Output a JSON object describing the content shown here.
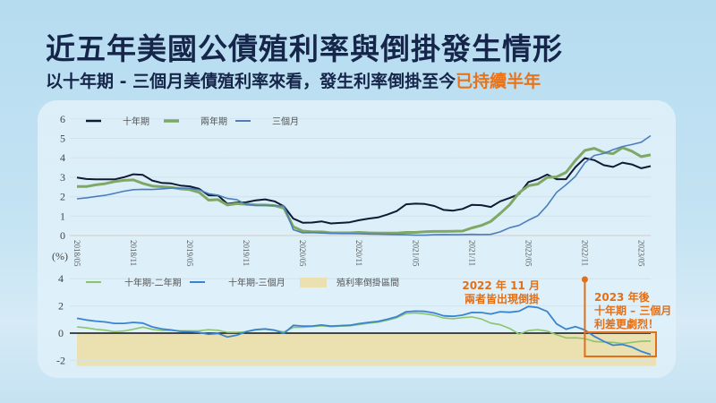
{
  "header": {
    "title": "近五年美國公債殖利率與倒掛發生情形",
    "subtitle_main": "以十年期 - 三個月美債殖利率來看，發生利率倒掛至今",
    "subtitle_highlight": "已持續半年"
  },
  "colors": {
    "ten_year": "#0f1a33",
    "two_year": "#7fa866",
    "three_month": "#4a7fbd",
    "spread_10y2y": "#8cc46e",
    "spread_10y3m": "#3a84cf",
    "inversion_fill": "#ebe0b0",
    "annotation": "#e0701a",
    "title": "#16264a"
  },
  "annotations": {
    "nov2022_line1": "2022 年 11 月",
    "nov2022_line2": "兩者皆出現倒掛",
    "y2023_line1": "2023 年後",
    "y2023_line2": "十年期 – 三個月",
    "y2023_line3": "利差更劇烈！"
  },
  "chart_data": [
    {
      "type": "line",
      "title": "",
      "xlabel": "",
      "ylabel": "",
      "ylim": [
        0,
        6
      ],
      "yticks": [
        0,
        1,
        2,
        3,
        4,
        5,
        6
      ],
      "grid": true,
      "legend_position": "top-left",
      "x_tick_labels": [
        "2018/05",
        "2018/11",
        "2019/05",
        "2019/11",
        "2020/05",
        "2020/11",
        "2021/05",
        "2021/11",
        "2022/05",
        "2022/11",
        "2023/05"
      ],
      "x_start": "2018/05",
      "x_freq": "monthly",
      "series": [
        {
          "name": "十年期",
          "values": [
            2.98,
            2.91,
            2.89,
            2.89,
            2.89,
            3.0,
            3.15,
            3.12,
            2.83,
            2.71,
            2.68,
            2.57,
            2.53,
            2.4,
            2.07,
            2.06,
            1.63,
            1.7,
            1.71,
            1.81,
            1.86,
            1.76,
            1.5,
            0.87,
            0.66,
            0.67,
            0.73,
            0.62,
            0.65,
            0.68,
            0.79,
            0.87,
            0.93,
            1.08,
            1.26,
            1.61,
            1.64,
            1.62,
            1.52,
            1.32,
            1.28,
            1.37,
            1.58,
            1.56,
            1.47,
            1.76,
            1.93,
            2.13,
            2.75,
            2.9,
            3.14,
            2.9,
            2.9,
            3.52,
            3.98,
            3.88,
            3.62,
            3.53,
            3.75,
            3.66,
            3.46,
            3.57
          ]
        },
        {
          "name": "兩年期",
          "values": [
            2.52,
            2.52,
            2.61,
            2.67,
            2.78,
            2.84,
            2.86,
            2.68,
            2.55,
            2.51,
            2.48,
            2.4,
            2.36,
            2.22,
            1.82,
            1.85,
            1.57,
            1.64,
            1.61,
            1.58,
            1.57,
            1.54,
            1.41,
            0.45,
            0.23,
            0.19,
            0.19,
            0.14,
            0.14,
            0.14,
            0.16,
            0.14,
            0.13,
            0.13,
            0.13,
            0.16,
            0.16,
            0.2,
            0.21,
            0.21,
            0.22,
            0.23,
            0.39,
            0.52,
            0.73,
            1.14,
            1.58,
            2.2,
            2.56,
            2.65,
            2.99,
            3.02,
            3.25,
            3.86,
            4.38,
            4.49,
            4.28,
            4.21,
            4.52,
            4.34,
            4.06,
            4.15
          ]
        },
        {
          "name": "三個月",
          "values": [
            1.89,
            1.94,
            2.01,
            2.07,
            2.17,
            2.28,
            2.36,
            2.38,
            2.37,
            2.4,
            2.44,
            2.44,
            2.43,
            2.35,
            2.15,
            2.08,
            1.91,
            1.85,
            1.6,
            1.55,
            1.55,
            1.54,
            1.52,
            0.3,
            0.14,
            0.15,
            0.13,
            0.11,
            0.1,
            0.1,
            0.09,
            0.08,
            0.07,
            0.06,
            0.05,
            0.04,
            0.02,
            0.02,
            0.04,
            0.05,
            0.04,
            0.05,
            0.06,
            0.05,
            0.06,
            0.19,
            0.4,
            0.52,
            0.79,
            1.02,
            1.55,
            2.22,
            2.61,
            3.04,
            3.74,
            4.12,
            4.22,
            4.42,
            4.58,
            4.68,
            4.8,
            5.14
          ]
        }
      ]
    },
    {
      "type": "line",
      "title": "",
      "xlabel": "",
      "ylabel": "(%)",
      "ylim": [
        -2.4,
        4
      ],
      "yticks": [
        -2,
        0,
        2,
        4
      ],
      "grid": true,
      "legend_position": "top",
      "x_start": "2018/05",
      "x_freq": "monthly",
      "shaded_region": {
        "name": "殖利率倒掛區間",
        "y_from": 0,
        "y_to": -2.4
      },
      "series": [
        {
          "name": "十年期-二年期",
          "values": [
            0.46,
            0.39,
            0.28,
            0.22,
            0.11,
            0.16,
            0.29,
            0.44,
            0.28,
            0.2,
            0.2,
            0.17,
            0.17,
            0.18,
            0.25,
            0.21,
            0.06,
            0.06,
            0.1,
            0.23,
            0.29,
            0.22,
            0.09,
            0.42,
            0.43,
            0.48,
            0.54,
            0.48,
            0.51,
            0.54,
            0.63,
            0.73,
            0.8,
            0.95,
            1.13,
            1.45,
            1.48,
            1.42,
            1.31,
            1.11,
            1.06,
            1.14,
            1.19,
            1.04,
            0.74,
            0.62,
            0.35,
            -0.07,
            0.19,
            0.25,
            0.15,
            -0.12,
            -0.35,
            -0.34,
            -0.4,
            -0.61,
            -0.66,
            -0.68,
            -0.77,
            -0.68,
            -0.6,
            -0.58
          ]
        },
        {
          "name": "十年期-三個月",
          "values": [
            1.09,
            0.97,
            0.88,
            0.82,
            0.72,
            0.72,
            0.79,
            0.74,
            0.46,
            0.31,
            0.24,
            0.13,
            0.1,
            0.05,
            -0.08,
            -0.02,
            -0.28,
            -0.15,
            0.11,
            0.26,
            0.31,
            0.22,
            -0.02,
            0.57,
            0.52,
            0.52,
            0.6,
            0.51,
            0.55,
            0.58,
            0.7,
            0.79,
            0.86,
            1.02,
            1.21,
            1.57,
            1.62,
            1.6,
            1.48,
            1.27,
            1.24,
            1.32,
            1.52,
            1.51,
            1.41,
            1.57,
            1.53,
            1.61,
            1.96,
            1.88,
            1.59,
            0.68,
            0.29,
            0.48,
            0.24,
            -0.24,
            -0.6,
            -0.89,
            -0.83,
            -1.02,
            -1.34,
            -1.57
          ]
        }
      ]
    }
  ]
}
